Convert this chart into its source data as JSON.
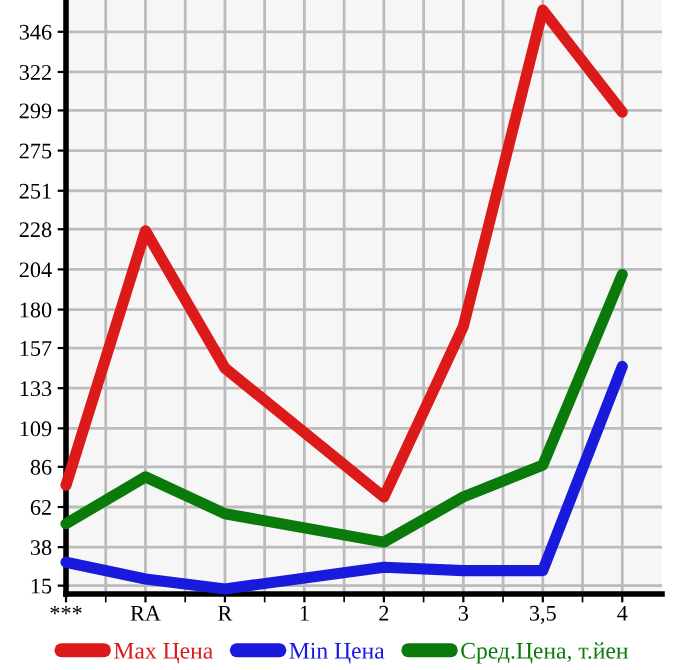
{
  "chart_data": {
    "type": "line",
    "categories": [
      "***",
      "RA",
      "R",
      "1",
      "2",
      "3",
      "3,5",
      "4"
    ],
    "series": [
      {
        "name": "Max Цена",
        "color": "#dd1a1a",
        "values": [
          75,
          227,
          145,
          null,
          68,
          170,
          359,
          298
        ]
      },
      {
        "name": "Min Цена",
        "color": "#1a1add",
        "values": [
          29,
          19,
          13,
          null,
          26,
          24,
          24,
          146
        ]
      },
      {
        "name": "Сред.Цена, т.йен",
        "color": "#0a7a0a",
        "values": [
          52,
          80,
          58,
          null,
          41,
          68,
          87,
          201
        ]
      }
    ],
    "ylim": [
      10,
      365
    ],
    "yticks": [
      15,
      38,
      62,
      86,
      109,
      133,
      157,
      180,
      204,
      228,
      251,
      275,
      299,
      322,
      346
    ],
    "grid": true,
    "legend": "bottom",
    "marker": "none",
    "line_style": "solid"
  }
}
